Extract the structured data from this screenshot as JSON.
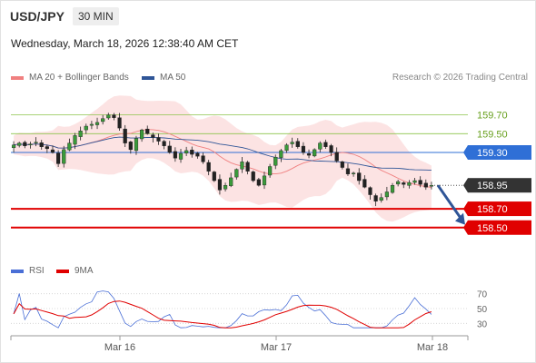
{
  "header": {
    "symbol": "USD/JPY",
    "timeframe": "30 MIN",
    "datetime": "Wednesday, March 18, 2026 12:38:40 AM CET"
  },
  "legend": {
    "main": [
      {
        "label": "MA 20 + Bollinger Bands",
        "color": "#f08080"
      },
      {
        "label": "MA 50",
        "color": "#2f5597"
      }
    ],
    "rsi": [
      {
        "label": "RSI",
        "color": "#4a6fd6"
      },
      {
        "label": "9MA",
        "color": "#e00000"
      }
    ]
  },
  "credit": "Research © 2026 Trading Central",
  "chart_data": [
    {
      "type": "candlestick",
      "x_ticks": [
        "Mar 16",
        "Mar 17",
        "Mar 18"
      ],
      "ylim": [
        158.43,
        159.88
      ],
      "levels": [
        {
          "label": "159.70",
          "value": 159.7,
          "kind": "resistance",
          "color": "#8bc34a"
        },
        {
          "label": "159.50",
          "value": 159.5,
          "kind": "resistance",
          "color": "#8bc34a"
        },
        {
          "label": "159.30",
          "value": 159.3,
          "kind": "pivot",
          "color": "#2f6fd6"
        },
        {
          "label": "158.95",
          "value": 158.95,
          "kind": "last",
          "color": "#333333"
        },
        {
          "label": "158.70",
          "value": 158.7,
          "kind": "support",
          "color": "#e00000"
        },
        {
          "label": "158.50",
          "value": 158.5,
          "kind": "support",
          "color": "#e00000"
        }
      ],
      "series": [
        {
          "name": "MA 20 + Bollinger Bands",
          "color": "#f08080"
        },
        {
          "name": "MA 50",
          "color": "#2f5597"
        }
      ],
      "close": [
        159.38,
        159.4,
        159.37,
        159.39,
        159.41,
        159.36,
        159.34,
        159.3,
        159.18,
        159.33,
        159.4,
        159.48,
        159.53,
        159.58,
        159.6,
        159.62,
        159.66,
        159.7,
        159.67,
        159.56,
        159.4,
        159.33,
        159.45,
        159.54,
        159.5,
        159.46,
        159.42,
        159.37,
        159.3,
        159.24,
        159.29,
        159.32,
        159.28,
        159.26,
        159.2,
        159.1,
        159.0,
        158.9,
        158.95,
        159.03,
        159.12,
        159.2,
        159.1,
        159.0,
        158.95,
        159.05,
        159.15,
        159.25,
        159.32,
        159.38,
        159.41,
        159.36,
        159.3,
        159.27,
        159.33,
        159.4,
        159.36,
        159.3,
        159.21,
        159.14,
        159.07,
        159.08,
        159.0,
        158.93,
        158.85,
        158.78,
        158.82,
        158.88,
        158.95,
        158.99,
        158.96,
        158.98,
        159.0,
        158.96,
        158.93,
        158.95
      ]
    },
    {
      "type": "line",
      "series": [
        {
          "name": "RSI",
          "color": "#4a6fd6"
        },
        {
          "name": "9MA",
          "color": "#e00000"
        }
      ],
      "y_ticks": [
        "70",
        "50",
        "30"
      ],
      "ylim": [
        23,
        77
      ]
    }
  ]
}
